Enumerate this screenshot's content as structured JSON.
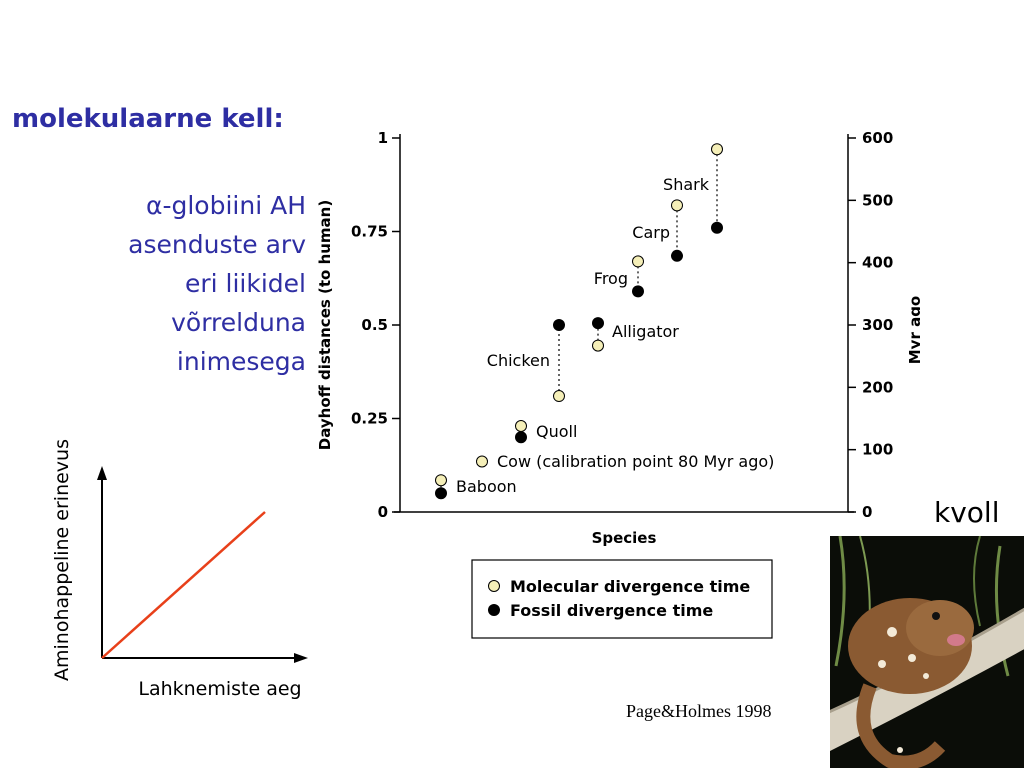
{
  "title": "molekulaarne kell:",
  "subtitle_lines": [
    "α-globiini AH",
    "asenduste arv",
    "eri liikidel",
    "võrrelduna",
    "inimesega"
  ],
  "sketch": {
    "ylabel": "Aminohappeline erinevus",
    "xlabel": "Lahknemiste aeg",
    "line_color": "#e8401a"
  },
  "chart_data": {
    "type": "scatter",
    "xlabel": "Species",
    "ylabel": "Dayhoff distances (to human)",
    "y2label": "Myr ago",
    "ylim": [
      0,
      1
    ],
    "y2lim": [
      0,
      600
    ],
    "yticks": [
      "0",
      "0.25",
      "0.5",
      "0.75",
      "1"
    ],
    "y2ticks": [
      "0",
      "100",
      "200",
      "300",
      "400",
      "500",
      "600"
    ],
    "categories": [
      "Baboon",
      "Cow (calibration point 80 Myr ago)",
      "Quoll",
      "Chicken",
      "Alligator",
      "Frog",
      "Carp",
      "Shark"
    ],
    "series": [
      {
        "name": "Molecular divergence time",
        "color": "#f5efb8",
        "values": [
          0.085,
          0.135,
          0.23,
          0.31,
          0.445,
          0.67,
          0.82,
          0.97
        ]
      },
      {
        "name": "Fossil divergence time",
        "color": "#000000",
        "values": [
          0.05,
          null,
          0.2,
          0.5,
          0.505,
          0.59,
          0.685,
          0.76
        ]
      }
    ],
    "legend_position": "bottom"
  },
  "photo_label": "kvoll",
  "citation": "Page&Holmes 1998"
}
